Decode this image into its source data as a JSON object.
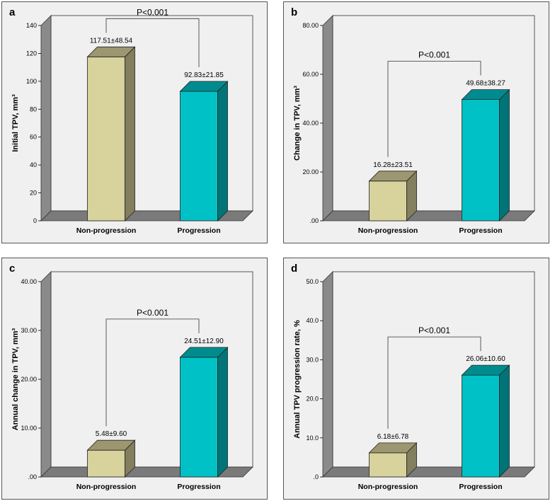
{
  "chart_data": [
    {
      "type": "bar",
      "panel": "a",
      "categories": [
        "Non-progression",
        "Progression"
      ],
      "values": [
        117.51,
        92.83
      ],
      "data_labels": [
        "117.51±48.54",
        "92.83±21.85"
      ],
      "ylabel": "Initial TPV, mm³",
      "ylim": [
        0,
        140
      ],
      "ticks": [
        0,
        20,
        40,
        60,
        80,
        100,
        120,
        140
      ],
      "tick_labels": [
        "0",
        "20",
        "40",
        "60",
        "80",
        "100",
        "120",
        "140"
      ],
      "annotation": "P<0.001",
      "colors": [
        "#d8d29c",
        "#00c2c6"
      ]
    },
    {
      "type": "bar",
      "panel": "b",
      "categories": [
        "Non-progression",
        "Progression"
      ],
      "values": [
        16.28,
        49.68
      ],
      "data_labels": [
        "16.28±23.51",
        "49.68±38.27"
      ],
      "ylabel": "Change in TPV, mm³",
      "ylim": [
        0,
        80
      ],
      "ticks": [
        0,
        20,
        40,
        60,
        80
      ],
      "tick_labels": [
        ".00",
        "20.00",
        "40.00",
        "60.00",
        "80.00"
      ],
      "annotation": "P<0.001",
      "colors": [
        "#d8d29c",
        "#00c2c6"
      ]
    },
    {
      "type": "bar",
      "panel": "c",
      "categories": [
        "Non-progression",
        "Progression"
      ],
      "values": [
        5.48,
        24.51
      ],
      "data_labels": [
        "5.48±9.60",
        "24.51±12.90"
      ],
      "ylabel": "Annual change in TPV, mm³",
      "ylim": [
        0,
        40
      ],
      "ticks": [
        0,
        10,
        20,
        30,
        40
      ],
      "tick_labels": [
        ".00",
        "10.00",
        "20.00",
        "30.00",
        "40.00"
      ],
      "annotation": "P<0.001",
      "colors": [
        "#d8d29c",
        "#00c2c6"
      ]
    },
    {
      "type": "bar",
      "panel": "d",
      "categories": [
        "Non-progression",
        "Progression"
      ],
      "values": [
        6.18,
        26.06
      ],
      "data_labels": [
        "6.18±6.78",
        "26.06±10.60"
      ],
      "ylabel": "Annual TPV progression rate, %",
      "ylim": [
        0,
        50
      ],
      "ticks": [
        0,
        10,
        20,
        30,
        40,
        50
      ],
      "tick_labels": [
        ".0",
        "10.0",
        "20.0",
        "30.0",
        "40.0",
        "50.0"
      ],
      "annotation": "P<0.001",
      "colors": [
        "#d8d29c",
        "#00c2c6"
      ]
    }
  ]
}
